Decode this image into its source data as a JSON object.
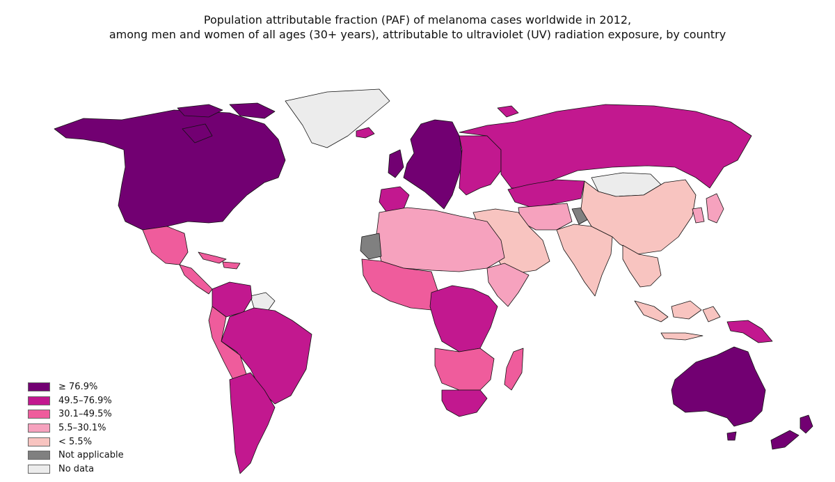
{
  "title": {
    "line1": "Population attributable fraction (PAF) of melanoma cases worldwide in 2012,",
    "line2": "among men and women of all ages (30+ years), attributable to ultraviolet (UV) radiation exposure, by country"
  },
  "legend": {
    "items": [
      {
        "label": "≥ 76.9%",
        "color": "#720072"
      },
      {
        "label": "49.5–76.9%",
        "color": "#c2188f"
      },
      {
        "label": "30.1–49.5%",
        "color": "#ef5c9c"
      },
      {
        "label": "5.5–30.1%",
        "color": "#f6a2be"
      },
      {
        "label": "< 5.5%",
        "color": "#f8c4c0"
      },
      {
        "label": "Not applicable",
        "color": "#808080"
      },
      {
        "label": "No data",
        "color": "#ececec"
      }
    ]
  },
  "map": {
    "regions": [
      {
        "name": "north-america",
        "category": "≥ 76.9%"
      },
      {
        "name": "greenland",
        "category": "No data"
      },
      {
        "name": "mexico",
        "category": "30.1–49.5%"
      },
      {
        "name": "central-america",
        "category": "30.1–49.5%"
      },
      {
        "name": "caribbean",
        "category": "30.1–49.5%"
      },
      {
        "name": "guianas",
        "category": "No data"
      },
      {
        "name": "venezuela",
        "category": "49.5–76.9%"
      },
      {
        "name": "brazil",
        "category": "49.5–76.9%"
      },
      {
        "name": "andes",
        "category": "30.1–49.5%"
      },
      {
        "name": "argentina-chile",
        "category": "49.5–76.9%"
      },
      {
        "name": "western-europe",
        "category": "≥ 76.9%"
      },
      {
        "name": "iberia",
        "category": "49.5–76.9%"
      },
      {
        "name": "iceland",
        "category": "49.5–76.9%"
      },
      {
        "name": "eastern-europe",
        "category": "49.5–76.9%"
      },
      {
        "name": "russia",
        "category": "49.5–76.9%"
      },
      {
        "name": "kazakhstan",
        "category": "49.5–76.9%"
      },
      {
        "name": "mongolia",
        "category": "No data"
      },
      {
        "name": "north-africa",
        "category": "5.5–30.1%"
      },
      {
        "name": "western-sahara",
        "category": "Not applicable"
      },
      {
        "name": "west-africa",
        "category": "30.1–49.5%"
      },
      {
        "name": "horn-of-africa",
        "category": "5.5–30.1%"
      },
      {
        "name": "central-africa",
        "category": "49.5–76.9%"
      },
      {
        "name": "southern-africa",
        "category": "30.1–49.5%"
      },
      {
        "name": "south-africa",
        "category": "49.5–76.9%"
      },
      {
        "name": "madagascar",
        "category": "30.1–49.5%"
      },
      {
        "name": "middle-east",
        "category": "< 5.5%"
      },
      {
        "name": "central-asia",
        "category": "5.5–30.1%"
      },
      {
        "name": "south-asia",
        "category": "< 5.5%"
      },
      {
        "name": "kashmir",
        "category": "Not applicable"
      },
      {
        "name": "china",
        "category": "< 5.5%"
      },
      {
        "name": "southeast-asia",
        "category": "< 5.5%"
      },
      {
        "name": "japan-korea",
        "category": "5.5–30.1%"
      },
      {
        "name": "indonesia",
        "category": "< 5.5%"
      },
      {
        "name": "papua-new-guinea",
        "category": "49.5–76.9%"
      },
      {
        "name": "australia",
        "category": "≥ 76.9%"
      },
      {
        "name": "new-zealand",
        "category": "≥ 76.9%"
      }
    ]
  }
}
